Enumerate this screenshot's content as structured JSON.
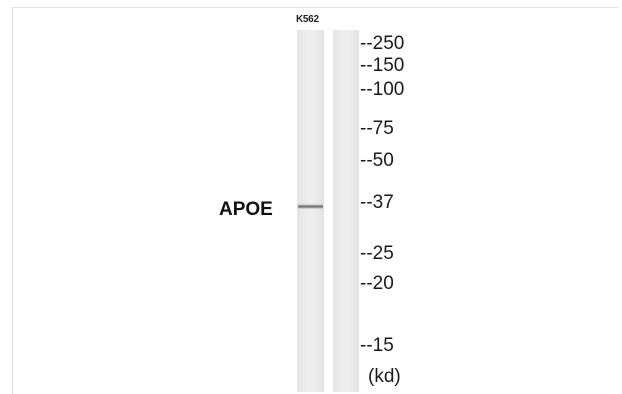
{
  "blot": {
    "sample_label": "K562",
    "protein_label": "APOE",
    "markers": [
      "--250",
      "--150",
      "--100",
      "--75",
      "--50",
      "--37",
      "--25",
      "--20",
      "--15"
    ],
    "unit": "(kd)"
  }
}
